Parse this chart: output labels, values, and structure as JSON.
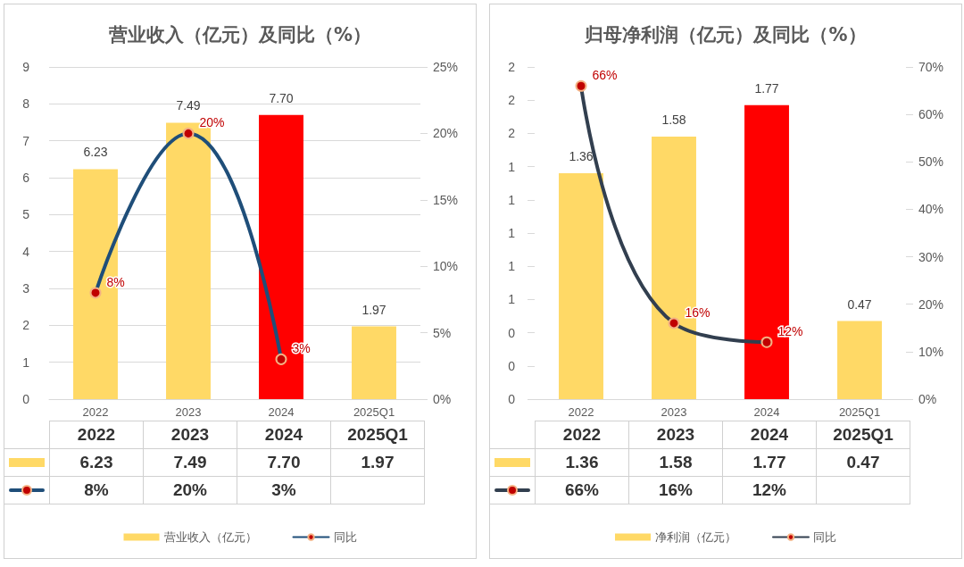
{
  "chart_data": [
    {
      "type": "bar",
      "title": "营业收入（亿元）及同比（%）",
      "categories": [
        "2022",
        "2023",
        "2024",
        "2025Q1"
      ],
      "series": [
        {
          "name": "营业收入（亿元）",
          "color": "#ffd966",
          "colors": [
            "#ffd966",
            "#ffd966",
            "#ff0000",
            "#ffd966"
          ],
          "values": [
            6.23,
            7.49,
            7.7,
            1.97
          ],
          "value_labels": [
            "6.23",
            "7.49",
            "7.70",
            "1.97"
          ]
        },
        {
          "name": "同比",
          "type": "line",
          "axis": "y2",
          "color": "#1f4e79",
          "values": [
            8,
            20,
            3,
            null
          ],
          "value_labels": [
            "8%",
            "20%",
            "3%",
            null
          ]
        }
      ],
      "ylim": [
        0,
        9
      ],
      "yticks": [
        0,
        1,
        2,
        3,
        4,
        5,
        6,
        7,
        8,
        9
      ],
      "y2lim": [
        0,
        25
      ],
      "y2ticks": [
        {
          "value": 0,
          "label": "0%"
        },
        {
          "value": 5,
          "label": "5%"
        },
        {
          "value": 10,
          "label": "10%"
        },
        {
          "value": 15,
          "label": "15%"
        },
        {
          "value": 20,
          "label": "20%"
        },
        {
          "value": 25,
          "label": "25%"
        }
      ],
      "grid": "y",
      "legend": "bottom",
      "marker": "circle"
    },
    {
      "type": "bar",
      "title": "归母净利润（亿元）及同比（%）",
      "categories": [
        "2022",
        "2023",
        "2024",
        "2025Q1"
      ],
      "series": [
        {
          "name": "净利润（亿元）",
          "color": "#ffd966",
          "colors": [
            "#ffd966",
            "#ffd966",
            "#ff0000",
            "#ffd966"
          ],
          "values": [
            1.36,
            1.58,
            1.77,
            0.47
          ],
          "value_labels": [
            "1.36",
            "1.58",
            "1.77",
            "0.47"
          ]
        },
        {
          "name": "同比",
          "type": "line",
          "axis": "y2",
          "color": "#323f4f",
          "values": [
            66,
            16,
            12,
            null
          ],
          "value_labels": [
            "66%",
            "16%",
            "12%",
            null
          ]
        }
      ],
      "ylim": [
        0,
        2
      ],
      "yticks": [
        {
          "value": 0,
          "label": "0"
        },
        {
          "value": 0.2,
          "label": "0"
        },
        {
          "value": 0.4,
          "label": "0"
        },
        {
          "value": 0.6,
          "label": "1"
        },
        {
          "value": 0.8,
          "label": "1"
        },
        {
          "value": 1.0,
          "label": "1"
        },
        {
          "value": 1.2,
          "label": "1"
        },
        {
          "value": 1.4,
          "label": "1"
        },
        {
          "value": 1.6,
          "label": "2"
        },
        {
          "value": 1.8,
          "label": "2"
        },
        {
          "value": 2.0,
          "label": "2"
        }
      ],
      "y2lim": [
        0,
        70
      ],
      "y2ticks": [
        {
          "value": 0,
          "label": "0%"
        },
        {
          "value": 10,
          "label": "10%"
        },
        {
          "value": 20,
          "label": "20%"
        },
        {
          "value": 30,
          "label": "30%"
        },
        {
          "value": 40,
          "label": "40%"
        },
        {
          "value": 50,
          "label": "50%"
        },
        {
          "value": 60,
          "label": "60%"
        },
        {
          "value": 70,
          "label": "70%"
        }
      ],
      "grid": false,
      "legend": "bottom",
      "marker": "circle"
    }
  ]
}
